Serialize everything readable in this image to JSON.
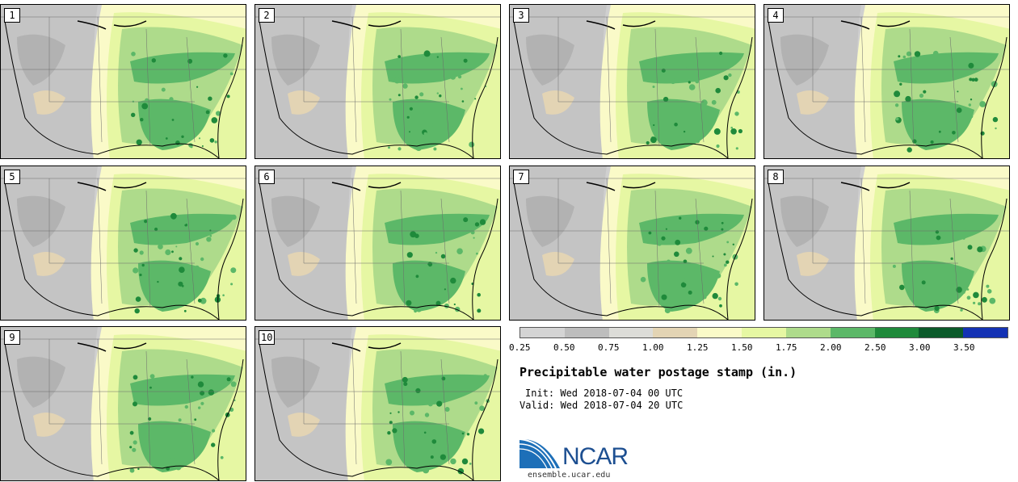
{
  "figure": {
    "title": "Precipitable water postage stamp (in.)",
    "init": "Init: Wed 2018-07-04 00 UTC",
    "valid": "Valid: Wed 2018-07-04 20 UTC",
    "logo_text": "NCAR",
    "logo_url": "ensemble.ucar.edu"
  },
  "members": [
    "1",
    "2",
    "3",
    "4",
    "5",
    "6",
    "7",
    "8",
    "9",
    "10"
  ],
  "legend": {
    "tick_labels": [
      "0.25",
      "0.50",
      "0.75",
      "1.00",
      "1.25",
      "1.50",
      "1.75",
      "2.00",
      "2.50",
      "3.00",
      "3.50"
    ],
    "colors": [
      "#d4d4d4",
      "#bdbdbd",
      "#dcdcd8",
      "#e3d4b4",
      "#fafac8",
      "#e6f7a3",
      "#aedb8b",
      "#5cb868",
      "#1f8a3b",
      "#0b5a2a",
      "#1432b4"
    ]
  }
}
